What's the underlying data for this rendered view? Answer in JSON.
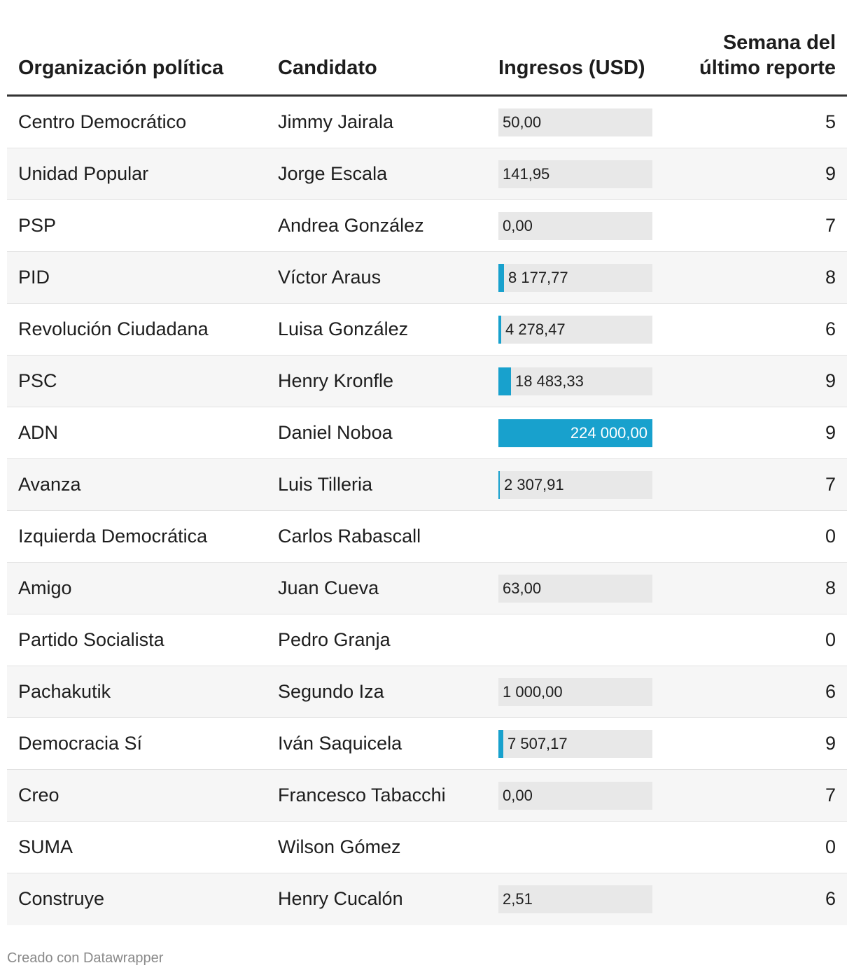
{
  "columns": {
    "organization": "Organización política",
    "candidate": "Candidato",
    "income": "Ingresos (USD)",
    "week_line1": "Semana del",
    "week_line2": "último reporte"
  },
  "chart_data": {
    "type": "table",
    "bar_column": "income",
    "bar_max": 224000,
    "bar_color": "#18a1cd",
    "track_color": "#e8e8e8",
    "rows": [
      {
        "organization": "Centro Democrático",
        "candidate": "Jimmy Jairala",
        "income": 50,
        "income_label": "50,00",
        "week": "5"
      },
      {
        "organization": "Unidad Popular",
        "candidate": "Jorge Escala",
        "income": 141.95,
        "income_label": "141,95",
        "week": "9"
      },
      {
        "organization": "PSP",
        "candidate": "Andrea González",
        "income": 0,
        "income_label": "0,00",
        "week": "7"
      },
      {
        "organization": "PID",
        "candidate": "Víctor Araus",
        "income": 8177.77,
        "income_label": "8 177,77",
        "week": "8"
      },
      {
        "organization": "Revolución Ciudadana",
        "candidate": "Luisa González",
        "income": 4278.47,
        "income_label": "4 278,47",
        "week": "6"
      },
      {
        "organization": "PSC",
        "candidate": "Henry Kronfle",
        "income": 18483.33,
        "income_label": "18 483,33",
        "week": "9"
      },
      {
        "organization": "ADN",
        "candidate": "Daniel Noboa",
        "income": 224000,
        "income_label": "224 000,00",
        "week": "9"
      },
      {
        "organization": "Avanza",
        "candidate": "Luis Tilleria",
        "income": 2307.91,
        "income_label": "2 307,91",
        "week": "7"
      },
      {
        "organization": "Izquierda Democrática",
        "candidate": "Carlos Rabascall",
        "income": null,
        "income_label": "",
        "week": "0"
      },
      {
        "organization": "Amigo",
        "candidate": "Juan Cueva",
        "income": 63,
        "income_label": "63,00",
        "week": "8"
      },
      {
        "organization": "Partido Socialista",
        "candidate": "Pedro Granja",
        "income": null,
        "income_label": "",
        "week": "0"
      },
      {
        "organization": "Pachakutik",
        "candidate": "Segundo Iza",
        "income": 1000,
        "income_label": "1 000,00",
        "week": "6"
      },
      {
        "organization": "Democracia Sí",
        "candidate": "Iván Saquicela",
        "income": 7507.17,
        "income_label": "7 507,17",
        "week": "9"
      },
      {
        "organization": "Creo",
        "candidate": "Francesco Tabacchi",
        "income": 0,
        "income_label": "0,00",
        "week": "7"
      },
      {
        "organization": "SUMA",
        "candidate": "Wilson Gómez",
        "income": null,
        "income_label": "",
        "week": "0"
      },
      {
        "organization": "Construye",
        "candidate": "Henry Cucalón",
        "income": 2.51,
        "income_label": "2,51",
        "week": "6"
      }
    ]
  },
  "footer": "Creado con Datawrapper"
}
